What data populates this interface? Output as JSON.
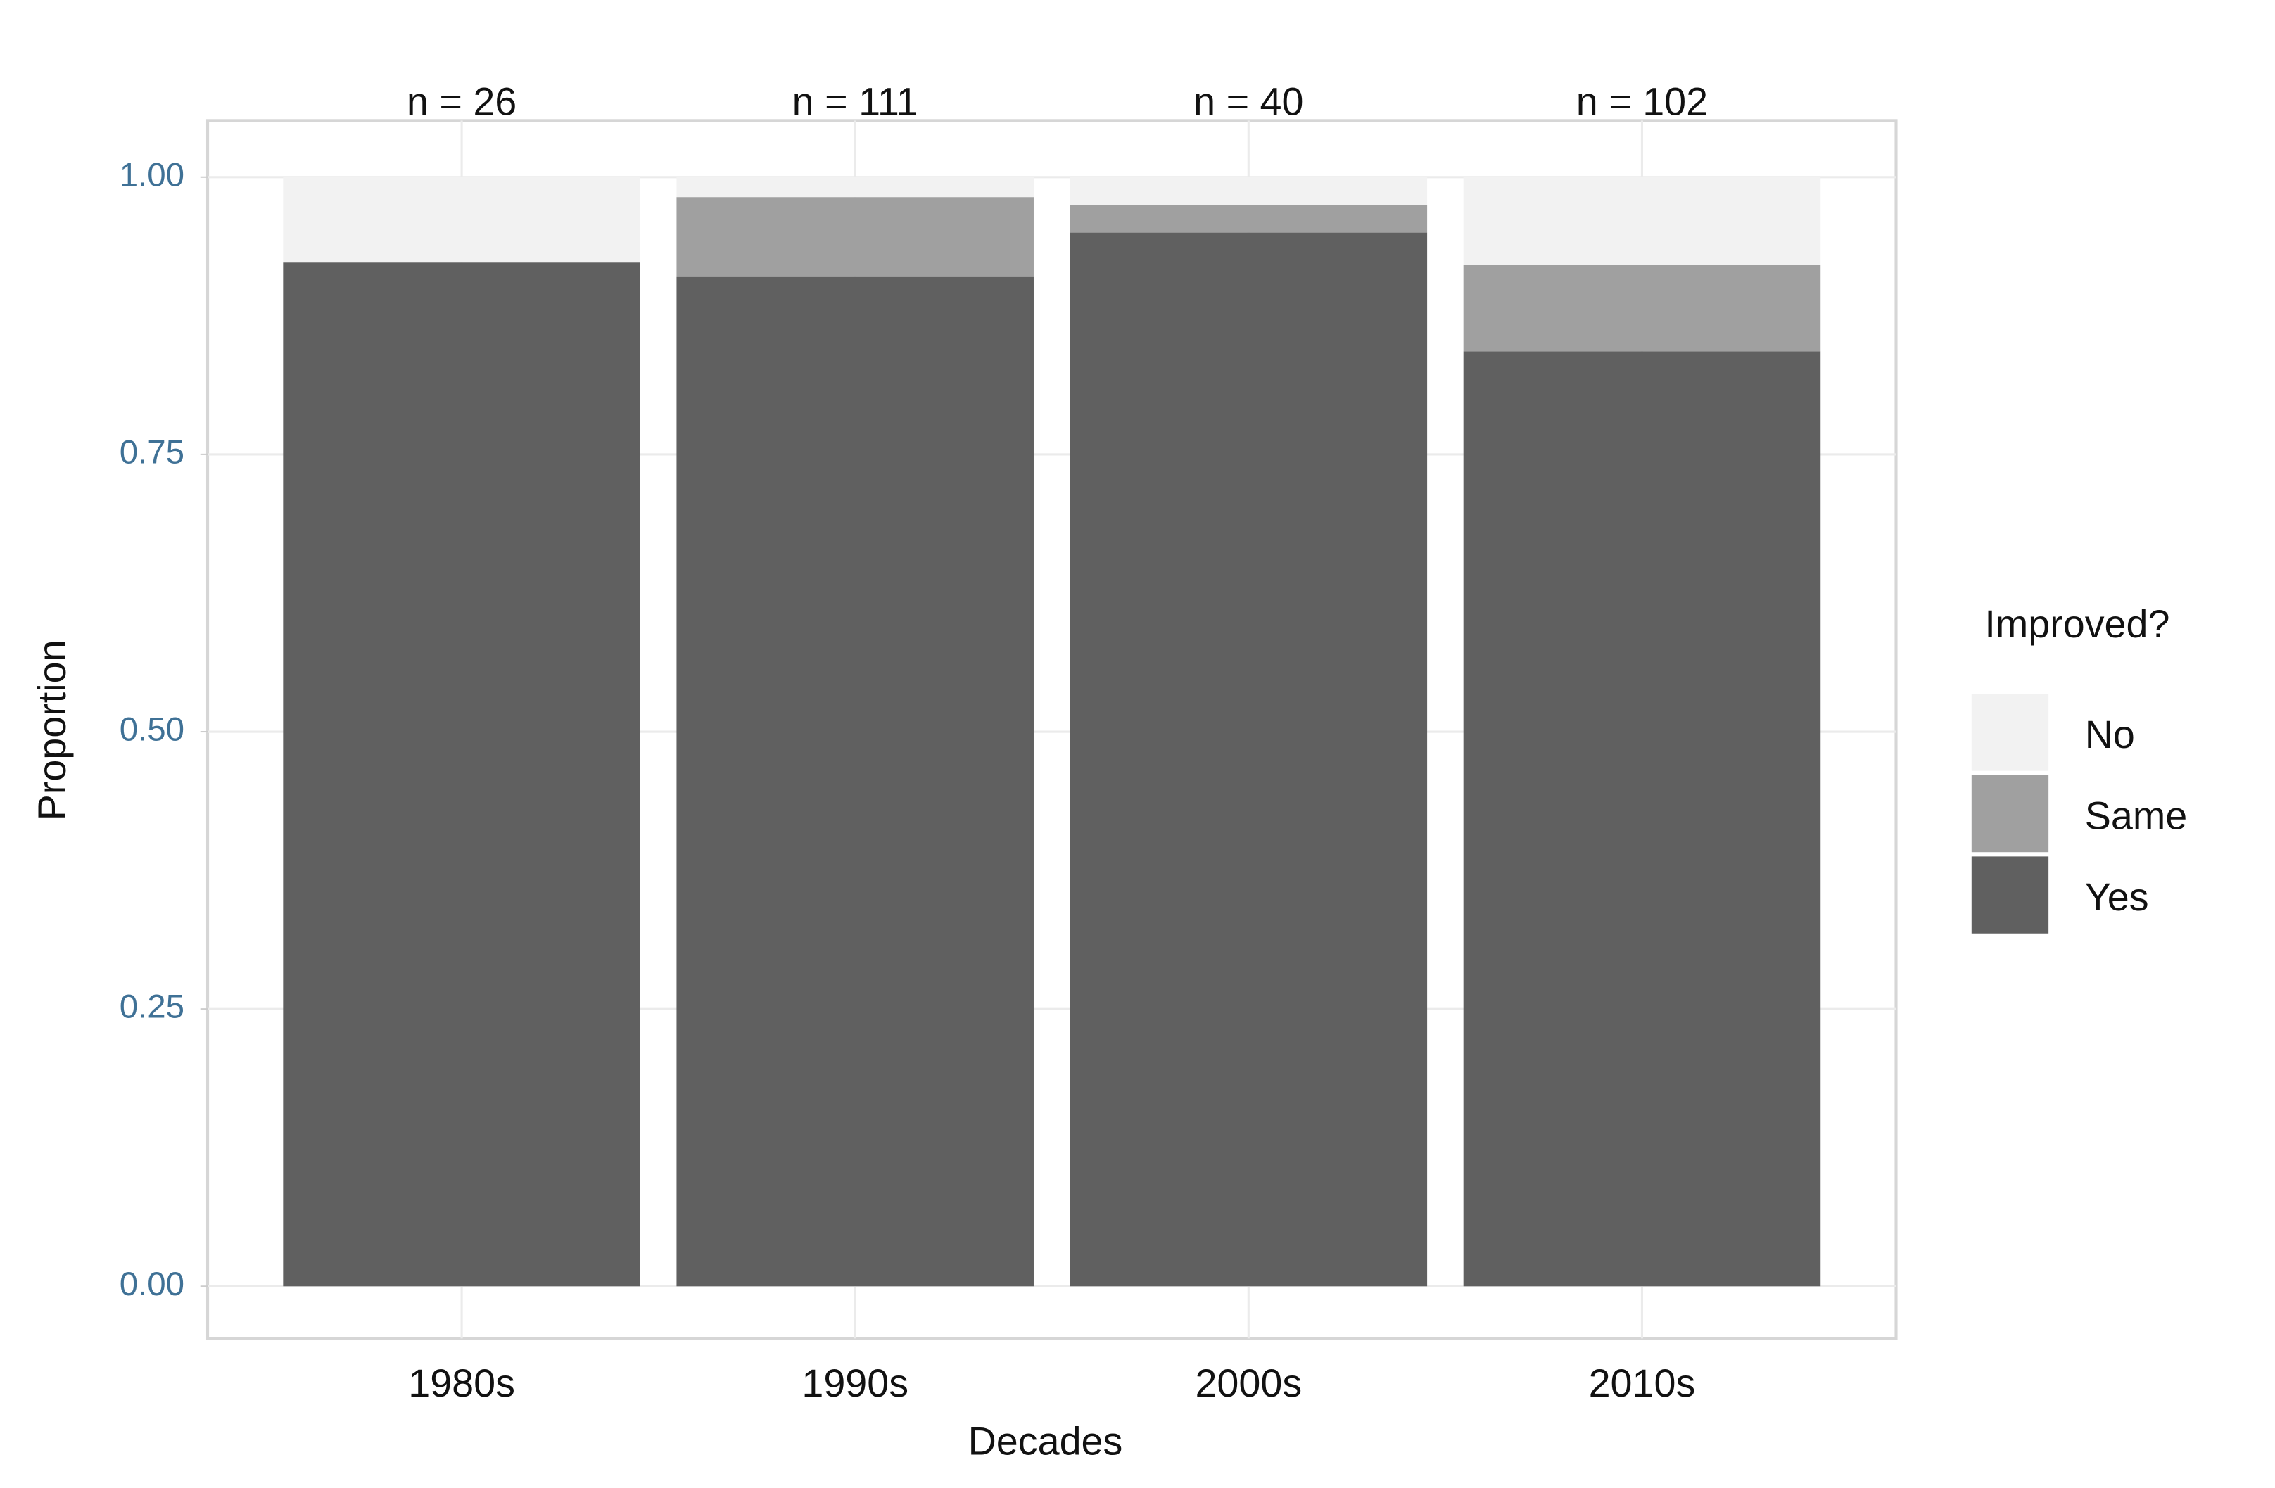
{
  "chart_data": {
    "type": "stacked-bar",
    "x_label": "Decades",
    "y_label": "Proportion",
    "categories": [
      "1980s",
      "1990s",
      "2000s",
      "2010s"
    ],
    "annotations": [
      "n = 26",
      "n = 111",
      "n = 40",
      "n = 102"
    ],
    "series": [
      {
        "name": "Yes",
        "color": "#606060",
        "values": [
          0.923,
          0.91,
          0.95,
          0.843
        ]
      },
      {
        "name": "Same",
        "color": "#a0a0a0",
        "values": [
          0,
          0.072,
          0.025,
          0.078
        ]
      },
      {
        "name": "No",
        "color": "#f2f2f2",
        "values": [
          0.077,
          0.018,
          0.025,
          0.079
        ]
      }
    ],
    "legend_title": "Improved?",
    "ylim": [
      -0.047,
      1.051
    ],
    "yticks": [
      {
        "value": 0,
        "label": "0.00"
      },
      {
        "value": 0.25,
        "label": "0.25"
      },
      {
        "value": 0.5,
        "label": "0.50"
      },
      {
        "value": 0.75,
        "label": "0.75"
      },
      {
        "value": 1,
        "label": "1.00"
      }
    ],
    "grid": true
  }
}
